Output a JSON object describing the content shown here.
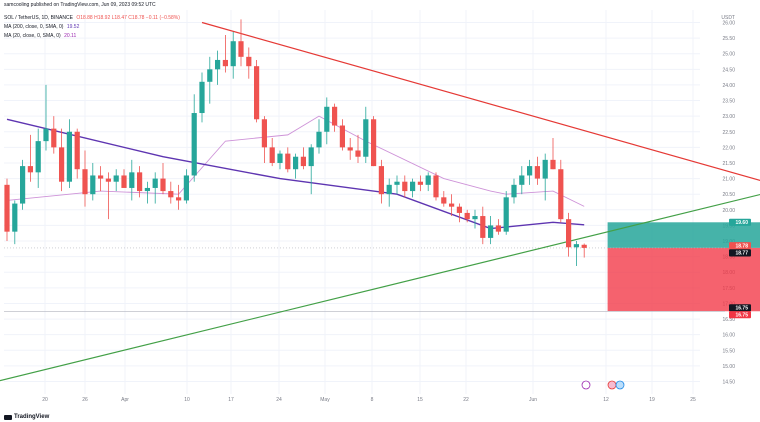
{
  "header": {
    "publisher": "samcooling published on TradingView.com, Jun 09, 2023 09:52 UTC",
    "symbol": "SOL / TetherUS, 1D, BINANCE",
    "ohlc": "O18.88 H18.92 L18.47 C18.78 −0.11 (−0.58%)",
    "ma200_label": "MA (200, close, 0, SMA, 0)",
    "ma200_value": "19.52",
    "ma20_label": "MA (20, close, 0, SMA, 0)",
    "ma20_value": "20.11"
  },
  "brand": "TradingView",
  "colors": {
    "up": "#26a69a",
    "down": "#ef5350",
    "ma200": "#5e35b1",
    "ma20": "#ce93d8",
    "upper_trendline": "#e53935",
    "lower_trendline": "#43a047",
    "target_zone": "#26a69a",
    "stop_zone": "#f23645"
  },
  "chart_data": {
    "type": "candlestick",
    "currency": "USDT",
    "ylim": [
      14.1,
      26.4
    ],
    "y_ticks": [
      "26.00",
      "25.50",
      "25.00",
      "24.50",
      "24.00",
      "23.50",
      "23.00",
      "22.50",
      "22.00",
      "21.50",
      "21.00",
      "20.50",
      "20.00",
      "19.50",
      "19.00",
      "18.50",
      "18.00",
      "17.50",
      "17.00",
      "16.50",
      "16.00",
      "15.50",
      "15.00",
      "14.50"
    ],
    "x_ticks": [
      "20",
      "26",
      "Apr",
      "10",
      "17",
      "24",
      "May",
      "8",
      "15",
      "22",
      "Jun",
      "12",
      "19",
      "25"
    ],
    "grid": true,
    "candles": [
      {
        "o": 20.8,
        "h": 21.0,
        "l": 19.0,
        "c": 19.3
      },
      {
        "o": 19.3,
        "h": 20.3,
        "l": 18.9,
        "c": 20.2
      },
      {
        "o": 20.2,
        "h": 21.6,
        "l": 20.0,
        "c": 21.4
      },
      {
        "o": 21.4,
        "h": 22.4,
        "l": 20.9,
        "c": 21.2
      },
      {
        "o": 21.2,
        "h": 22.6,
        "l": 20.7,
        "c": 22.2
      },
      {
        "o": 22.2,
        "h": 24.0,
        "l": 21.9,
        "c": 22.6
      },
      {
        "o": 22.6,
        "h": 23.0,
        "l": 21.8,
        "c": 22.0
      },
      {
        "o": 22.0,
        "h": 22.6,
        "l": 20.6,
        "c": 20.9
      },
      {
        "o": 20.9,
        "h": 22.9,
        "l": 20.7,
        "c": 22.5
      },
      {
        "o": 22.5,
        "h": 22.6,
        "l": 21.0,
        "c": 21.3
      },
      {
        "o": 21.3,
        "h": 21.9,
        "l": 20.1,
        "c": 20.5
      },
      {
        "o": 20.5,
        "h": 21.5,
        "l": 20.3,
        "c": 21.1
      },
      {
        "o": 21.1,
        "h": 21.4,
        "l": 20.6,
        "c": 21.0
      },
      {
        "o": 21.0,
        "h": 21.2,
        "l": 19.7,
        "c": 20.9
      },
      {
        "o": 20.9,
        "h": 21.3,
        "l": 20.6,
        "c": 21.1
      },
      {
        "o": 21.1,
        "h": 21.3,
        "l": 20.8,
        "c": 20.7
      },
      {
        "o": 20.7,
        "h": 21.6,
        "l": 20.3,
        "c": 21.2
      },
      {
        "o": 21.2,
        "h": 21.4,
        "l": 20.4,
        "c": 20.6
      },
      {
        "o": 20.6,
        "h": 20.9,
        "l": 20.2,
        "c": 20.7
      },
      {
        "o": 20.7,
        "h": 21.2,
        "l": 20.2,
        "c": 21.0
      },
      {
        "o": 21.0,
        "h": 21.5,
        "l": 20.5,
        "c": 20.6
      },
      {
        "o": 20.6,
        "h": 20.9,
        "l": 20.2,
        "c": 20.4
      },
      {
        "o": 20.4,
        "h": 20.8,
        "l": 20.0,
        "c": 20.3
      },
      {
        "o": 20.3,
        "h": 21.3,
        "l": 20.2,
        "c": 21.1
      },
      {
        "o": 21.1,
        "h": 23.7,
        "l": 20.9,
        "c": 23.1
      },
      {
        "o": 23.1,
        "h": 24.4,
        "l": 22.8,
        "c": 24.1
      },
      {
        "o": 24.1,
        "h": 24.9,
        "l": 23.4,
        "c": 24.5
      },
      {
        "o": 24.5,
        "h": 25.1,
        "l": 24.0,
        "c": 24.8
      },
      {
        "o": 24.8,
        "h": 25.6,
        "l": 24.4,
        "c": 24.6
      },
      {
        "o": 24.6,
        "h": 25.7,
        "l": 24.2,
        "c": 25.4
      },
      {
        "o": 25.4,
        "h": 26.1,
        "l": 24.6,
        "c": 24.9
      },
      {
        "o": 24.9,
        "h": 25.2,
        "l": 24.2,
        "c": 24.6
      },
      {
        "o": 24.6,
        "h": 24.8,
        "l": 22.8,
        "c": 22.9
      },
      {
        "o": 22.9,
        "h": 23.0,
        "l": 21.5,
        "c": 22.0
      },
      {
        "o": 22.0,
        "h": 22.3,
        "l": 21.4,
        "c": 21.5
      },
      {
        "o": 21.5,
        "h": 21.9,
        "l": 21.3,
        "c": 21.8
      },
      {
        "o": 21.8,
        "h": 22.0,
        "l": 21.2,
        "c": 21.3
      },
      {
        "o": 21.3,
        "h": 21.8,
        "l": 21.0,
        "c": 21.7
      },
      {
        "o": 21.7,
        "h": 22.0,
        "l": 21.3,
        "c": 21.4
      },
      {
        "o": 21.4,
        "h": 22.1,
        "l": 20.5,
        "c": 22.0
      },
      {
        "o": 22.0,
        "h": 22.9,
        "l": 21.8,
        "c": 22.5
      },
      {
        "o": 22.5,
        "h": 23.6,
        "l": 22.1,
        "c": 23.3
      },
      {
        "o": 23.3,
        "h": 23.4,
        "l": 22.5,
        "c": 22.7
      },
      {
        "o": 22.7,
        "h": 22.9,
        "l": 21.9,
        "c": 22.0
      },
      {
        "o": 22.0,
        "h": 22.3,
        "l": 21.6,
        "c": 21.9
      },
      {
        "o": 21.9,
        "h": 22.4,
        "l": 21.5,
        "c": 21.7
      },
      {
        "o": 21.7,
        "h": 23.3,
        "l": 21.5,
        "c": 22.9
      },
      {
        "o": 22.9,
        "h": 23.0,
        "l": 21.4,
        "c": 21.4
      },
      {
        "o": 21.4,
        "h": 21.6,
        "l": 20.2,
        "c": 20.5
      },
      {
        "o": 20.5,
        "h": 21.0,
        "l": 20.1,
        "c": 20.8
      },
      {
        "o": 20.8,
        "h": 21.1,
        "l": 20.5,
        "c": 20.9
      },
      {
        "o": 20.9,
        "h": 21.1,
        "l": 20.4,
        "c": 20.6
      },
      {
        "o": 20.6,
        "h": 21.0,
        "l": 20.4,
        "c": 20.9
      },
      {
        "o": 20.9,
        "h": 21.1,
        "l": 20.6,
        "c": 20.8
      },
      {
        "o": 20.8,
        "h": 21.2,
        "l": 20.6,
        "c": 21.1
      },
      {
        "o": 21.1,
        "h": 21.2,
        "l": 20.3,
        "c": 20.4
      },
      {
        "o": 20.4,
        "h": 20.6,
        "l": 20.1,
        "c": 20.2
      },
      {
        "o": 20.2,
        "h": 20.5,
        "l": 19.8,
        "c": 20.1
      },
      {
        "o": 20.1,
        "h": 20.2,
        "l": 19.6,
        "c": 19.9
      },
      {
        "o": 19.9,
        "h": 20.0,
        "l": 19.6,
        "c": 19.7
      },
      {
        "o": 19.7,
        "h": 20.0,
        "l": 19.4,
        "c": 19.8
      },
      {
        "o": 19.8,
        "h": 20.1,
        "l": 18.9,
        "c": 19.1
      },
      {
        "o": 19.1,
        "h": 19.8,
        "l": 18.9,
        "c": 19.5
      },
      {
        "o": 19.5,
        "h": 19.7,
        "l": 19.2,
        "c": 19.3
      },
      {
        "o": 19.3,
        "h": 20.6,
        "l": 19.2,
        "c": 20.4
      },
      {
        "o": 20.4,
        "h": 21.0,
        "l": 20.2,
        "c": 20.8
      },
      {
        "o": 20.8,
        "h": 21.4,
        "l": 20.5,
        "c": 21.1
      },
      {
        "o": 21.1,
        "h": 21.6,
        "l": 20.8,
        "c": 21.4
      },
      {
        "o": 21.4,
        "h": 21.7,
        "l": 20.8,
        "c": 21.0
      },
      {
        "o": 21.0,
        "h": 21.8,
        "l": 20.3,
        "c": 21.6
      },
      {
        "o": 21.6,
        "h": 22.3,
        "l": 21.3,
        "c": 21.3
      },
      {
        "o": 21.3,
        "h": 21.6,
        "l": 19.6,
        "c": 19.7
      },
      {
        "o": 19.7,
        "h": 19.9,
        "l": 18.5,
        "c": 18.8
      },
      {
        "o": 18.8,
        "h": 19.0,
        "l": 18.2,
        "c": 18.9
      },
      {
        "o": 18.88,
        "h": 18.92,
        "l": 18.47,
        "c": 18.78
      }
    ],
    "ma200": [
      [
        0,
        22.9
      ],
      [
        20,
        21.7
      ],
      [
        35,
        21.0
      ],
      [
        50,
        20.5
      ],
      [
        62,
        19.4
      ],
      [
        70,
        19.6
      ],
      [
        74,
        19.52
      ]
    ],
    "ma20": [
      [
        0,
        20.3
      ],
      [
        12,
        20.6
      ],
      [
        22,
        20.5
      ],
      [
        28,
        22.2
      ],
      [
        36,
        22.4
      ],
      [
        40,
        23.0
      ],
      [
        46,
        22.2
      ],
      [
        56,
        21.0
      ],
      [
        62,
        20.6
      ],
      [
        64,
        20.5
      ],
      [
        70,
        20.6
      ],
      [
        74,
        20.11
      ]
    ],
    "trendlines": [
      {
        "from": [
          25,
          26.0
        ],
        "to": [
          100,
          20.7
        ],
        "color": "upper_trendline"
      },
      {
        "from": [
          -3,
          14.4
        ],
        "to": [
          100,
          20.7
        ],
        "color": "lower_trendline"
      }
    ],
    "position": {
      "entry": 18.78,
      "target": 19.6,
      "stop": 16.75,
      "x_start": 77,
      "x_end": 97
    },
    "price_labels": [
      {
        "value": "19.60",
        "color": "#26a69a"
      },
      {
        "value": "18.78",
        "color": "#ef5350"
      },
      {
        "value": "18.77",
        "color": "#131722"
      },
      {
        "value": "16.75",
        "color": "#131722"
      },
      {
        "value": "16.75",
        "color": "#f23645"
      }
    ]
  }
}
